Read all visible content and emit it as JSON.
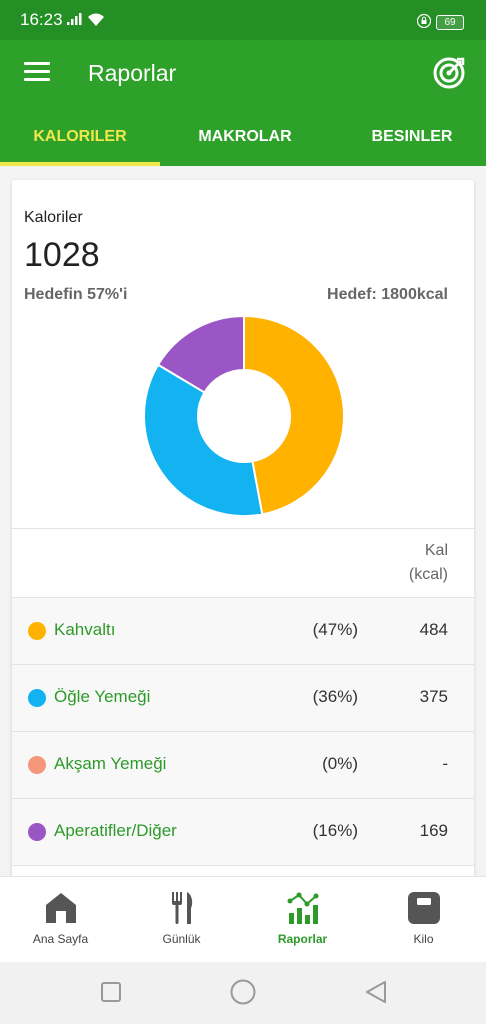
{
  "status_bar": {
    "time": "16:23",
    "battery": "69"
  },
  "app_bar": {
    "title": "Raporlar"
  },
  "tabs": [
    {
      "label": "KALORILER",
      "active": true
    },
    {
      "label": "MAKROLAR",
      "active": false
    },
    {
      "label": "BESINLER",
      "active": false
    }
  ],
  "summary": {
    "label": "Kaloriler",
    "value": "1028",
    "goal_percent": "Hedefin 57%'i",
    "goal_target": "Hedef: 1800kcal"
  },
  "table": {
    "header_line1": "Kal",
    "header_line2": "(kcal)",
    "rows": [
      {
        "name": "Kahvaltı",
        "percent": "(47%)",
        "kcal": "484",
        "color": "#ffb300"
      },
      {
        "name": "Öğle Yemeği",
        "percent": "(36%)",
        "kcal": "375",
        "color": "#12b3f0"
      },
      {
        "name": "Akşam Yemeği",
        "percent": "(0%)",
        "kcal": "-",
        "color": "#f4977a"
      },
      {
        "name": "Aperatifler/Diğer",
        "percent": "(16%)",
        "kcal": "169",
        "color": "#9a56c4"
      }
    ]
  },
  "chart_data": {
    "type": "pie",
    "categories": [
      "Kahvaltı",
      "Öğle Yemeği",
      "Akşam Yemeği",
      "Aperatifler/Diğer"
    ],
    "values": [
      484,
      375,
      0,
      169
    ],
    "colors": [
      "#ffb300",
      "#12b3f0",
      "#f4977a",
      "#9a56c4"
    ],
    "donut": true
  },
  "bottom_nav": [
    {
      "label": "Ana Sayfa",
      "icon": "home-icon",
      "active": false
    },
    {
      "label": "Günlük",
      "icon": "fork-knife-icon",
      "active": false
    },
    {
      "label": "Raporlar",
      "icon": "chart-icon",
      "active": true
    },
    {
      "label": "Kilo",
      "icon": "scale-icon",
      "active": false
    }
  ]
}
